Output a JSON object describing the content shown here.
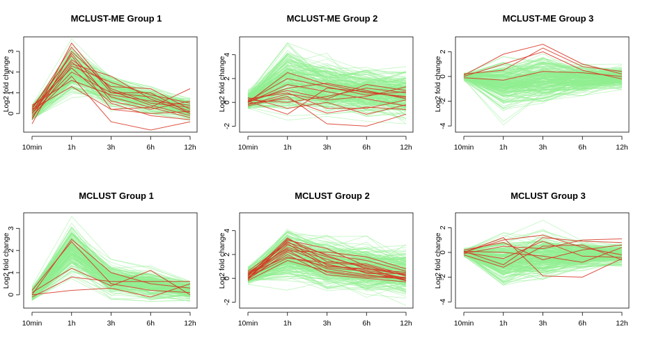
{
  "figure": {
    "colors": {
      "background_lines": "#90EE90",
      "highlight_lines": "#D7301F",
      "axis": "#000000"
    }
  },
  "chart_data": [
    {
      "type": "line",
      "title": "MCLUST-ME Group 1",
      "ylabel": "Log2 fold change",
      "categories": [
        "10min",
        "1h",
        "3h",
        "6h",
        "12h"
      ],
      "yticks": [
        0,
        1,
        2,
        3
      ],
      "ylim": [
        -0.9,
        3.7
      ],
      "grid": false,
      "background": {
        "count": 160,
        "mean": [
          0.0,
          2.0,
          1.1,
          0.65,
          0.2
        ],
        "spread": [
          0.22,
          0.55,
          0.35,
          0.3,
          0.22
        ],
        "min": [
          -0.3,
          0.6,
          0.1,
          0.0,
          -0.4
        ],
        "max": [
          0.4,
          3.6,
          1.8,
          1.3,
          0.75
        ]
      },
      "series": [
        {
          "values": [
            0.2,
            3.2,
            1.0,
            0.8,
            0.1
          ]
        },
        {
          "values": [
            -0.5,
            3.0,
            1.2,
            0.5,
            0.3
          ]
        },
        {
          "values": [
            0.3,
            2.8,
            0.2,
            0.3,
            1.2
          ]
        },
        {
          "values": [
            0.0,
            2.6,
            1.3,
            1.2,
            0.2
          ]
        },
        {
          "values": [
            0.1,
            2.5,
            0.8,
            0.3,
            -0.2
          ]
        },
        {
          "values": [
            -0.2,
            2.3,
            1.5,
            0.9,
            0.5
          ]
        },
        {
          "values": [
            0.3,
            2.2,
            0.5,
            -0.1,
            -0.3
          ]
        },
        {
          "values": [
            0.0,
            2.0,
            1.0,
            1.0,
            0.0
          ]
        },
        {
          "values": [
            -0.1,
            1.8,
            -0.4,
            -0.8,
            -0.4
          ]
        },
        {
          "values": [
            0.4,
            1.6,
            0.9,
            0.6,
            0.4
          ]
        },
        {
          "values": [
            0.2,
            1.3,
            0.2,
            0.0,
            0.1
          ]
        },
        {
          "values": [
            -0.3,
            3.4,
            1.1,
            0.4,
            -0.1
          ]
        },
        {
          "values": [
            0.1,
            2.9,
            0.6,
            0.2,
            0.6
          ]
        },
        {
          "values": [
            0.0,
            2.4,
            1.8,
            0.7,
            0.0
          ]
        }
      ]
    },
    {
      "type": "line",
      "title": "MCLUST-ME Group 2",
      "ylabel": "Log2 fold change",
      "categories": [
        "10min",
        "1h",
        "3h",
        "6h",
        "12h"
      ],
      "yticks": [
        -2,
        0,
        2,
        4
      ],
      "ylim": [
        -2.5,
        5.5
      ],
      "grid": false,
      "background": {
        "count": 220,
        "mean": [
          0.1,
          1.8,
          1.1,
          0.9,
          0.6
        ],
        "spread": [
          0.35,
          1.2,
          1.0,
          0.9,
          0.9
        ],
        "min": [
          -0.5,
          -1.5,
          -2.0,
          -2.3,
          -1.8
        ],
        "max": [
          1.0,
          5.0,
          4.3,
          4.0,
          3.5
        ]
      },
      "series": [
        {
          "values": [
            0.0,
            2.5,
            1.5,
            0.8,
            0.5
          ]
        },
        {
          "values": [
            0.2,
            1.0,
            0.3,
            1.5,
            1.0
          ]
        },
        {
          "values": [
            0.1,
            -1.0,
            1.2,
            0.9,
            0.4
          ]
        },
        {
          "values": [
            -0.3,
            0.5,
            -1.8,
            -2.0,
            -1.0
          ]
        },
        {
          "values": [
            0.3,
            0.8,
            -0.5,
            -0.5,
            0.2
          ]
        },
        {
          "values": [
            0.0,
            1.5,
            0.9,
            0.3,
            -0.3
          ]
        },
        {
          "values": [
            0.2,
            0.0,
            0.5,
            1.2,
            0.8
          ]
        },
        {
          "values": [
            -0.1,
            0.3,
            -0.9,
            -0.4,
            -0.6
          ]
        },
        {
          "values": [
            0.1,
            2.0,
            1.3,
            0.6,
            0.9
          ]
        },
        {
          "values": [
            0.4,
            -0.5,
            0.0,
            -1.0,
            -0.2
          ]
        },
        {
          "values": [
            0.0,
            1.2,
            1.6,
            1.0,
            0.3
          ]
        },
        {
          "values": [
            -0.2,
            0.7,
            0.2,
            0.5,
            1.3
          ]
        }
      ]
    },
    {
      "type": "line",
      "title": "MCLUST-ME Group 3",
      "ylabel": "Log2 fold change",
      "categories": [
        "10min",
        "1h",
        "3h",
        "6h",
        "12h"
      ],
      "yticks": [
        -4,
        -2,
        0,
        2
      ],
      "ylim": [
        -4.5,
        3.2
      ],
      "grid": false,
      "background": {
        "count": 220,
        "mean": [
          0.0,
          -0.6,
          -0.3,
          -0.2,
          -0.1
        ],
        "spread": [
          0.12,
          0.9,
          0.9,
          0.5,
          0.4
        ],
        "min": [
          -0.4,
          -4.2,
          -2.5,
          -1.6,
          -1.2
        ],
        "max": [
          0.4,
          1.6,
          3.0,
          1.4,
          1.0
        ]
      },
      "series": [
        {
          "values": [
            0.1,
            1.8,
            2.6,
            1.0,
            0.2
          ]
        },
        {
          "values": [
            0.0,
            1.0,
            2.0,
            0.5,
            -0.2
          ]
        },
        {
          "values": [
            -0.1,
            -0.3,
            0.4,
            0.3,
            0.0
          ]
        },
        {
          "values": [
            0.2,
            0.5,
            2.3,
            0.8,
            0.4
          ]
        }
      ]
    },
    {
      "type": "line",
      "title": "MCLUST Group 1",
      "ylabel": "Log2 fold change",
      "categories": [
        "10min",
        "1h",
        "3h",
        "6h",
        "12h"
      ],
      "yticks": [
        0,
        1,
        2,
        3
      ],
      "ylim": [
        -0.6,
        3.7
      ],
      "grid": false,
      "background": {
        "count": 180,
        "mean": [
          0.0,
          2.0,
          0.7,
          0.45,
          0.2
        ],
        "spread": [
          0.15,
          0.5,
          0.3,
          0.3,
          0.2
        ],
        "min": [
          -0.25,
          0.3,
          -0.2,
          -0.3,
          -0.3
        ],
        "max": [
          0.4,
          3.6,
          1.6,
          1.3,
          0.6
        ]
      },
      "series": [
        {
          "values": [
            0.0,
            2.5,
            1.0,
            0.5,
            0.3
          ]
        },
        {
          "values": [
            0.1,
            1.2,
            0.4,
            1.1,
            0.0
          ]
        },
        {
          "values": [
            -0.1,
            0.8,
            0.6,
            0.6,
            0.6
          ]
        },
        {
          "values": [
            0.0,
            0.2,
            0.3,
            -0.1,
            0.5
          ]
        },
        {
          "values": [
            0.2,
            2.4,
            0.5,
            0.2,
            0.1
          ]
        }
      ]
    },
    {
      "type": "line",
      "title": "MCLUST Group 2",
      "ylabel": "Log2 fold change",
      "categories": [
        "10min",
        "1h",
        "3h",
        "6h",
        "12h"
      ],
      "yticks": [
        -2,
        0,
        2,
        4
      ],
      "ylim": [
        -2.5,
        5.5
      ],
      "grid": false,
      "background": {
        "count": 220,
        "mean": [
          0.2,
          2.0,
          1.1,
          0.8,
          0.4
        ],
        "spread": [
          0.3,
          1.1,
          1.0,
          0.9,
          0.9
        ],
        "min": [
          -0.5,
          -1.0,
          -2.2,
          -2.0,
          -2.3
        ],
        "max": [
          1.0,
          5.2,
          4.0,
          3.8,
          3.5
        ]
      },
      "series": [
        {
          "values": [
            0.3,
            3.2,
            2.5,
            1.0,
            0.2
          ]
        },
        {
          "values": [
            0.0,
            2.8,
            1.8,
            0.9,
            -0.2
          ]
        },
        {
          "values": [
            0.5,
            2.5,
            1.2,
            0.5,
            0.0
          ]
        },
        {
          "values": [
            0.2,
            3.4,
            1.4,
            1.2,
            0.3
          ]
        },
        {
          "values": [
            -0.1,
            2.2,
            0.8,
            0.3,
            -0.1
          ]
        },
        {
          "values": [
            0.4,
            1.8,
            1.0,
            0.8,
            0.5
          ]
        },
        {
          "values": [
            0.1,
            2.0,
            0.3,
            0.0,
            -0.3
          ]
        },
        {
          "values": [
            0.6,
            3.0,
            2.0,
            1.5,
            0.6
          ]
        },
        {
          "values": [
            -0.2,
            1.5,
            0.6,
            0.2,
            0.1
          ]
        },
        {
          "values": [
            0.3,
            2.6,
            1.6,
            0.4,
            0.4
          ]
        },
        {
          "values": [
            0.0,
            3.1,
            1.1,
            0.7,
            0.0
          ]
        },
        {
          "values": [
            0.2,
            2.3,
            2.2,
            1.8,
            0.8
          ]
        },
        {
          "values": [
            0.4,
            2.9,
            0.9,
            0.6,
            -0.2
          ]
        },
        {
          "values": [
            0.1,
            1.7,
            1.3,
            1.1,
            0.2
          ]
        },
        {
          "values": [
            0.3,
            2.4,
            0.5,
            0.1,
            0.0
          ]
        },
        {
          "values": [
            -0.1,
            3.3,
            1.9,
            0.8,
            0.3
          ]
        }
      ]
    },
    {
      "type": "line",
      "title": "MCLUST Group 3",
      "ylabel": "Log2 fold change",
      "categories": [
        "10min",
        "1h",
        "3h",
        "6h",
        "12h"
      ],
      "yticks": [
        -4,
        -2,
        0,
        2
      ],
      "ylim": [
        -4.5,
        3.2
      ],
      "grid": false,
      "background": {
        "count": 220,
        "mean": [
          0.0,
          -0.6,
          -0.3,
          -0.2,
          -0.1
        ],
        "spread": [
          0.12,
          0.9,
          0.9,
          0.5,
          0.4
        ],
        "min": [
          -0.4,
          -4.2,
          -2.5,
          -1.6,
          -1.2
        ],
        "max": [
          0.4,
          1.6,
          3.0,
          1.4,
          1.0
        ]
      },
      "series": [
        {
          "values": [
            0.0,
            1.2,
            -1.9,
            -2.0,
            -0.5
          ]
        },
        {
          "values": [
            0.1,
            -1.0,
            1.2,
            0.9,
            0.8
          ]
        },
        {
          "values": [
            -0.1,
            0.5,
            0.3,
            1.0,
            1.1
          ]
        },
        {
          "values": [
            0.0,
            -0.5,
            0.9,
            -0.3,
            -0.4
          ]
        },
        {
          "values": [
            0.2,
            0.8,
            -0.6,
            0.2,
            0.6
          ]
        },
        {
          "values": [
            -0.2,
            -1.2,
            0.5,
            0.6,
            -0.6
          ]
        },
        {
          "values": [
            0.1,
            0.0,
            -0.3,
            -0.8,
            0.4
          ]
        },
        {
          "values": [
            0.0,
            1.0,
            1.4,
            0.4,
            -0.2
          ]
        }
      ]
    }
  ]
}
